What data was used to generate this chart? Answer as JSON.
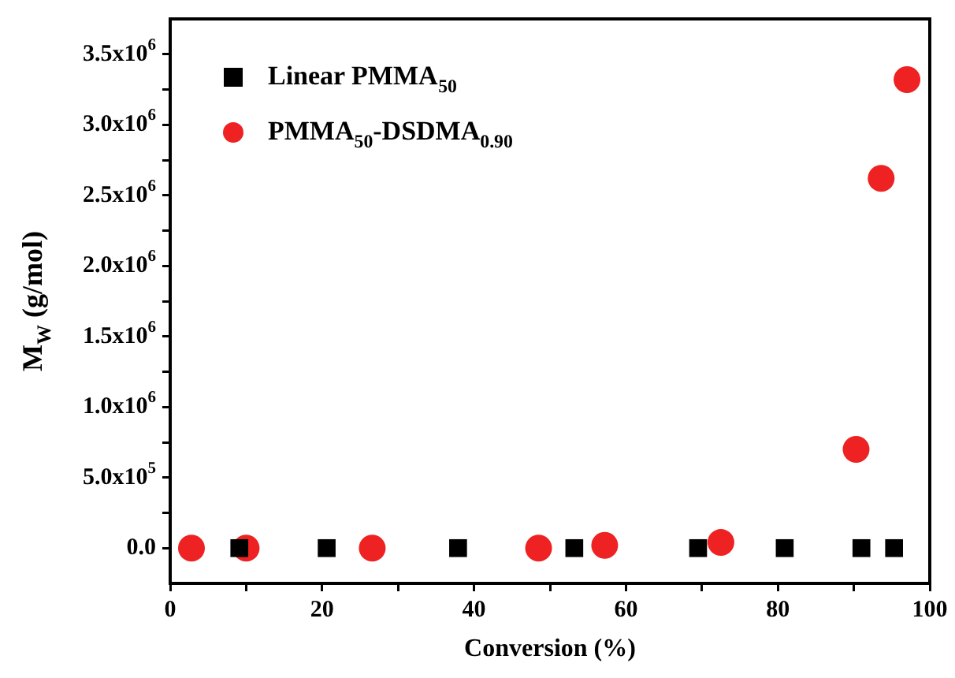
{
  "chart_data": {
    "type": "scatter",
    "xlabel": "Conversion (%)",
    "ylabel": "M$_{W}$ (g/mol)",
    "xlim": [
      0,
      100
    ],
    "xticks": [
      0,
      {
        "value": 10,
        "label": null
      },
      20,
      {
        "value": 30,
        "label": null
      },
      40,
      {
        "value": 50,
        "label": null
      },
      60,
      {
        "value": 70,
        "label": null
      },
      80,
      {
        "value": 90,
        "label": null
      },
      100
    ],
    "ylim": [
      -250000,
      3750000
    ],
    "yticks": [
      {
        "value": 0,
        "label": "0.0"
      },
      {
        "value": 250000,
        "label": null
      },
      {
        "value": 500000,
        "label": "5.0x10$^{5}$"
      },
      {
        "value": 750000,
        "label": null
      },
      {
        "value": 1000000,
        "label": "1.0x10$^{6}$"
      },
      {
        "value": 1250000,
        "label": null
      },
      {
        "value": 1500000,
        "label": "1.5x10$^{6}$"
      },
      {
        "value": 1750000,
        "label": null
      },
      {
        "value": 2000000,
        "label": "2.0x10$^{6}$"
      },
      {
        "value": 2250000,
        "label": null
      },
      {
        "value": 2500000,
        "label": "2.5x10$^{6}$"
      },
      {
        "value": 2750000,
        "label": null
      },
      {
        "value": 3000000,
        "label": "3.0x10$^{6}$"
      },
      {
        "value": 3250000,
        "label": null
      },
      {
        "value": 3500000,
        "label": "3.5x10$^{6}$"
      }
    ],
    "grid": false,
    "legend": "top left",
    "series": [
      {
        "name": "Linear PMMA$_{50}$",
        "color": "#000000",
        "marker": "square",
        "x": [
          9.1,
          20.6,
          37.9,
          53.2,
          69.5,
          80.9,
          91.0,
          95.3
        ],
        "values": [
          0,
          0,
          0,
          0,
          0,
          0,
          0,
          0
        ]
      },
      {
        "name": "PMMA$_{50}$-DSDMA$_{0.90}$",
        "color": "#ee2222",
        "marker": "circle",
        "x": [
          2.8,
          10.0,
          26.6,
          48.5,
          57.2,
          72.5,
          90.3,
          93.6,
          97.0
        ],
        "values": [
          0,
          0,
          0,
          0,
          20000,
          40000,
          700000,
          2620000,
          3320000
        ]
      }
    ]
  }
}
